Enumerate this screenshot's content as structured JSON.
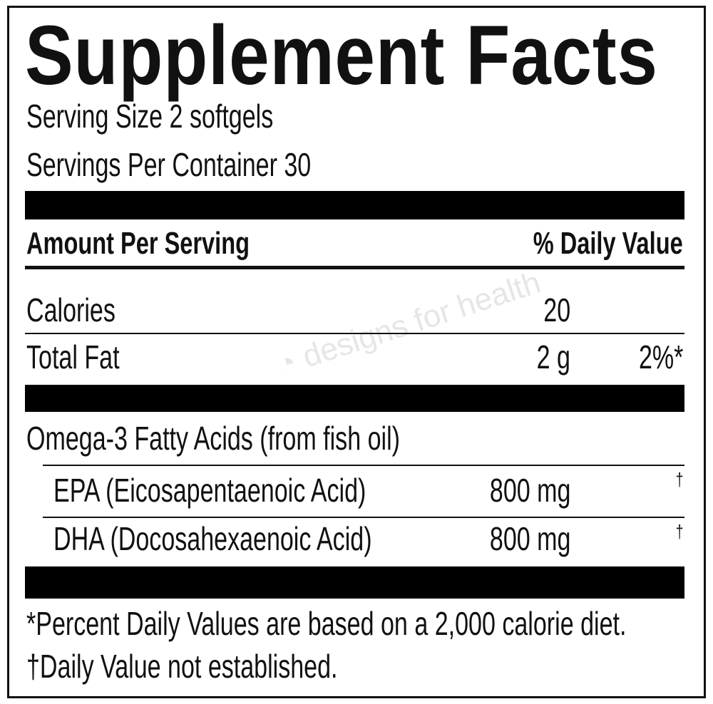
{
  "title": "Supplement Facts",
  "serving_size": "Serving Size 2 softgels",
  "servings_per_container": "Servings Per Container 30",
  "header": {
    "amount": "Amount Per Serving",
    "daily_value": "% Daily Value"
  },
  "rows": [
    {
      "name": "Calories",
      "amount": "20",
      "dv": ""
    },
    {
      "name": "Total Fat",
      "amount": "2 g",
      "dv": "2%*"
    }
  ],
  "group_label": "Omega-3 Fatty Acids (from fish oil)",
  "sub_rows": [
    {
      "name": "EPA (Eicosapentaenoic Acid)",
      "amount": "800 mg",
      "dv": "†"
    },
    {
      "name": "DHA (Docosahexaenoic Acid)",
      "amount": "800 mg",
      "dv": "†"
    }
  ],
  "footnotes": [
    "*Percent Daily Values are based on a 2,000 calorie diet.",
    "†Daily Value not established."
  ],
  "watermark": "designs for health"
}
